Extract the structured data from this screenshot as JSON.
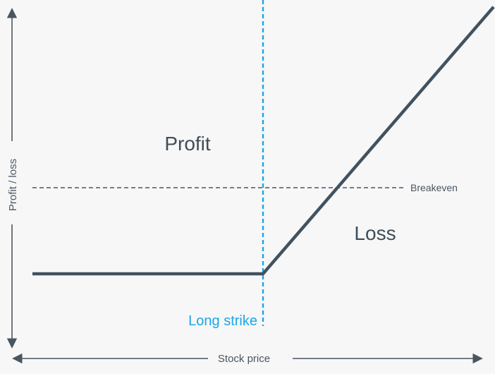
{
  "chart_data": {
    "type": "line",
    "title": "",
    "xlabel": "Stock price",
    "ylabel": "Profit / loss",
    "x": [
      0,
      50,
      100
    ],
    "series": [
      {
        "values": [
          -20,
          -20,
          42
        ]
      }
    ],
    "reference_lines": {
      "breakeven": {
        "y": 0,
        "label": "Breakeven"
      },
      "long_strike": {
        "x": 50,
        "label": "Long strike"
      }
    },
    "annotations": [
      {
        "text": "Profit"
      },
      {
        "text": "Loss"
      }
    ],
    "grid": false
  },
  "colors": {
    "payoff_line": "#415261",
    "strike_line": "#1aa7e8",
    "axis": "#4a5560",
    "breakeven_line": "#4a5560"
  }
}
